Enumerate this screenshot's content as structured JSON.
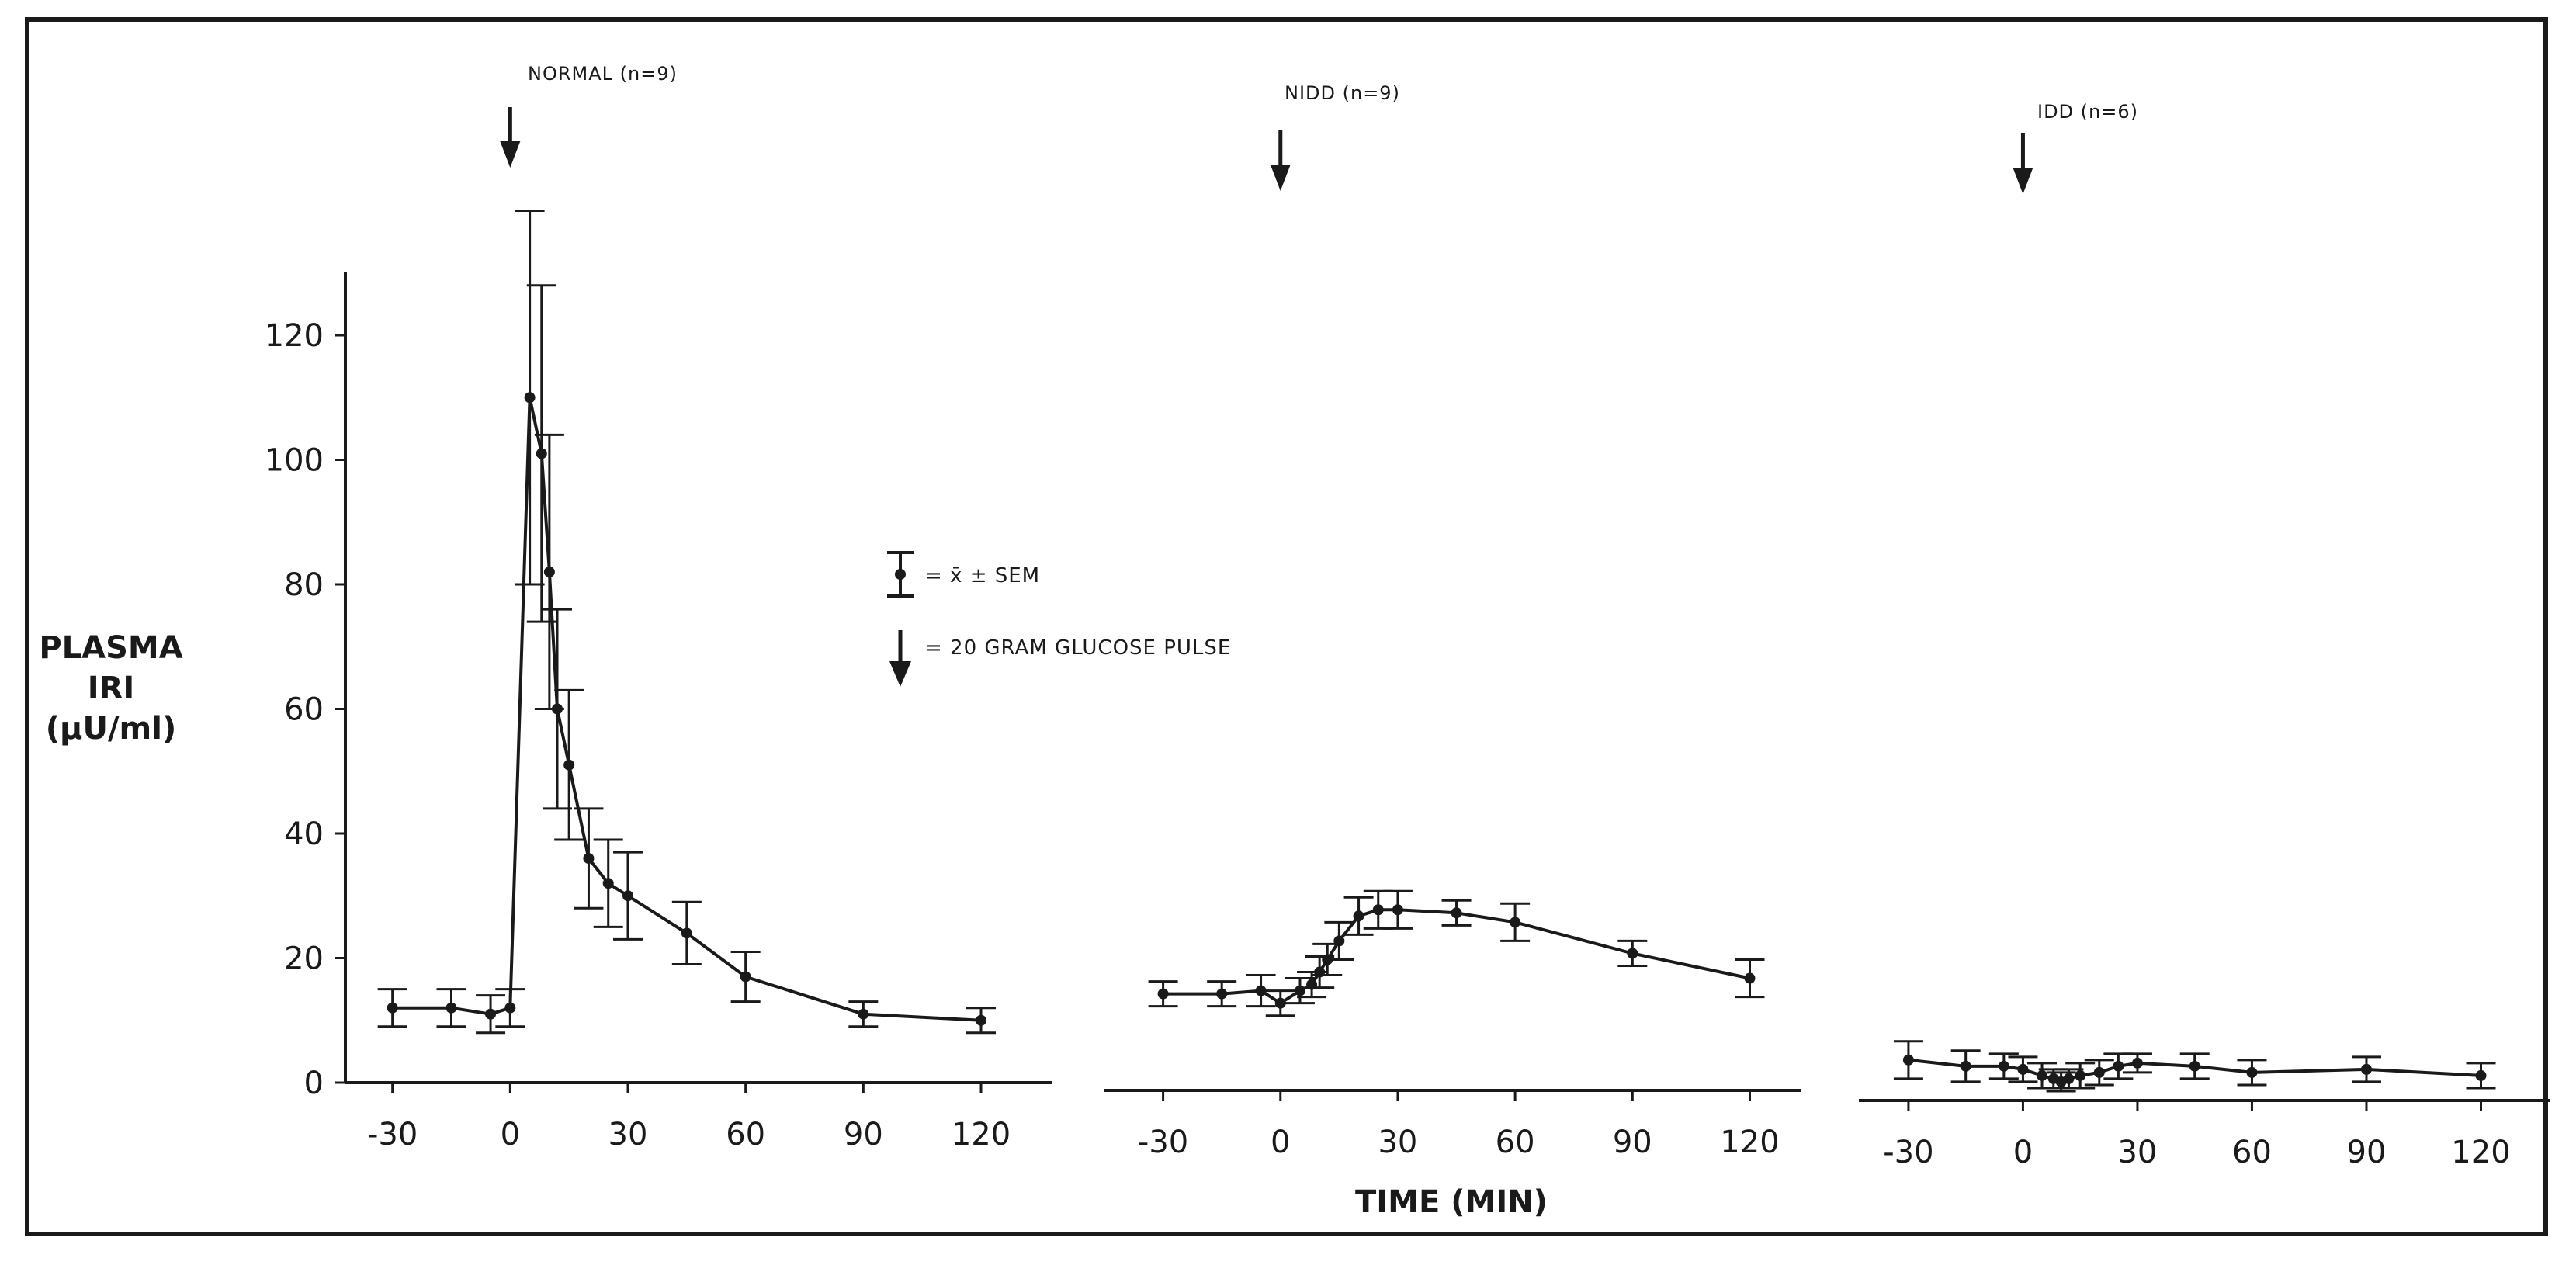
{
  "colors": {
    "ink": "#1a1a1a",
    "background": "#ffffff"
  },
  "y_axis": {
    "label_lines": [
      "PLASMA",
      "IRI",
      "(µU/ml)"
    ]
  },
  "x_axis": {
    "label": "TIME (MIN)"
  },
  "legend": {
    "mean_sem_label": "= x̄ ± SEM",
    "arrow_label": "= 20 GRAM GLUCOSE PULSE"
  },
  "chart_data": [
    {
      "type": "line",
      "title": "NORMAL (n=9)",
      "pulse_time": 0,
      "xlim": [
        -42,
        138
      ],
      "ylim": [
        0,
        130
      ],
      "xticks": [
        -30,
        0,
        30,
        60,
        90,
        120
      ],
      "yticks": [
        0,
        20,
        40,
        60,
        80,
        100,
        120
      ],
      "grid": false,
      "series": [
        {
          "x": [
            -30,
            -15,
            -5,
            0,
            5,
            8,
            10,
            12,
            15,
            20,
            25,
            30,
            45,
            60,
            90,
            120
          ],
          "y": [
            12,
            12,
            11,
            12,
            110,
            101,
            82,
            60,
            51,
            36,
            32,
            30,
            24,
            17,
            11,
            10
          ],
          "sem": [
            3,
            3,
            3,
            3,
            30,
            27,
            22,
            16,
            12,
            8,
            7,
            7,
            5,
            4,
            2,
            2
          ]
        }
      ]
    },
    {
      "type": "line",
      "title": "NIDD (n=9)",
      "pulse_time": 0,
      "xlim": [
        -45,
        133
      ],
      "ylim": [
        0,
        130
      ],
      "xticks": [
        -30,
        0,
        30,
        60,
        90,
        120
      ],
      "grid": false,
      "series": [
        {
          "x": [
            -30,
            -15,
            -5,
            0,
            5,
            8,
            10,
            12,
            15,
            20,
            25,
            30,
            45,
            60,
            90,
            120
          ],
          "y": [
            15.5,
            15.5,
            16,
            14,
            16,
            17,
            19,
            21,
            24,
            28,
            29,
            29,
            28.5,
            27,
            22,
            18
          ],
          "sem": [
            2,
            2,
            2.5,
            2,
            2,
            2,
            2.5,
            2.5,
            3,
            3,
            3,
            3,
            2,
            3,
            2,
            3
          ]
        }
      ]
    },
    {
      "type": "line",
      "title": "IDD (n=6)",
      "pulse_time": 0,
      "xlim": [
        -43,
        138
      ],
      "ylim": [
        0,
        130
      ],
      "xticks": [
        -30,
        0,
        30,
        60,
        90,
        120
      ],
      "grid": false,
      "series": [
        {
          "x": [
            -30,
            -15,
            -5,
            0,
            5,
            8,
            10,
            12,
            15,
            20,
            25,
            30,
            45,
            60,
            90,
            120
          ],
          "y": [
            6.5,
            5.5,
            5.5,
            5,
            4,
            3.5,
            3,
            3.5,
            4,
            4.5,
            5.5,
            6,
            5.5,
            4.5,
            5,
            4
          ],
          "sem": [
            3,
            2.5,
            2,
            2,
            2,
            1.5,
            1.5,
            1.5,
            2,
            2,
            2,
            1.5,
            2,
            2,
            2,
            2
          ]
        }
      ]
    }
  ]
}
